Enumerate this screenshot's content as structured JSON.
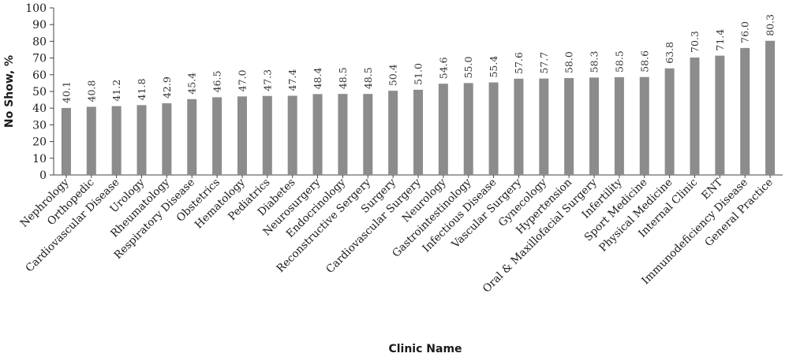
{
  "chart_data": {
    "type": "bar",
    "xlabel": "Clinic Name",
    "ylabel": "No Show, %",
    "ylim": [
      0,
      100
    ],
    "yticks": [
      0,
      10,
      20,
      30,
      40,
      50,
      60,
      70,
      80,
      90,
      100
    ],
    "grid": false,
    "bar_color": "#8c8c8c",
    "categories": [
      "Nephrology",
      "Orthopedic",
      "Cardiovascular Disease",
      "Urology",
      "Rheumatology",
      "Respiratory Disease",
      "Obstetrics",
      "Hematology",
      "Pediatrics",
      "Diabetes",
      "Neurosurgery",
      "Endocrinology",
      "Reconstructive Sergery",
      "Surgery",
      "Cardiovascular Surgery",
      "Neurology",
      "Gastrointestinology",
      "Infectious Disease",
      "Vascular Surgery",
      "Gynecology",
      "Hypertension",
      "Oral & Maxillofacial Surgery",
      "Infertility",
      "Sport Medicine",
      "Physical Medicine",
      "Internal Clinic",
      "ENT",
      "Immunodeficiency Disease",
      "General Practice"
    ],
    "values": [
      40.1,
      40.8,
      41.2,
      41.8,
      42.9,
      45.4,
      46.5,
      47.0,
      47.3,
      47.4,
      48.4,
      48.5,
      48.5,
      50.4,
      51.0,
      54.6,
      55.0,
      55.4,
      57.6,
      57.7,
      58.0,
      58.3,
      58.5,
      58.6,
      63.8,
      70.3,
      71.4,
      76.0,
      80.3
    ],
    "value_labels": [
      "40.1",
      "40.8",
      "41.2",
      "41.8",
      "42.9",
      "45.4",
      "46.5",
      "47.0",
      "47.3",
      "47.4",
      "48.4",
      "48.5",
      "48.5",
      "50.4",
      "51.0",
      "54.6",
      "55.0",
      "55.4",
      "57.6",
      "57.7",
      "58.0",
      "58.3",
      "58.5",
      "58.6",
      "63.8",
      "70.3",
      "71.4",
      "76.0",
      "80.3"
    ]
  }
}
